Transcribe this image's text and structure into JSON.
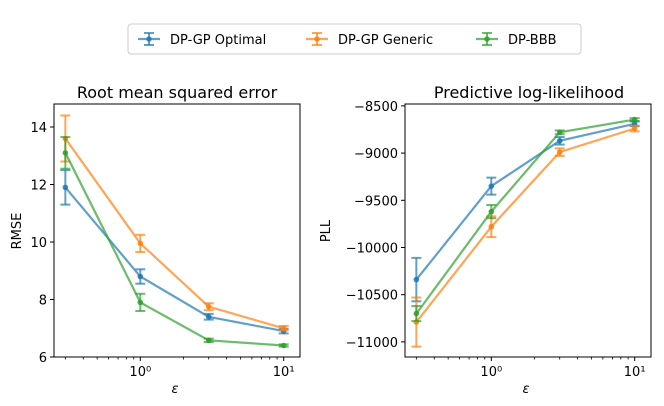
{
  "legend": {
    "entries": [
      {
        "name": "DP-GP Optimal",
        "color": "#1f77b4"
      },
      {
        "name": "DP-GP Generic",
        "color": "#ff7f0e"
      },
      {
        "name": "DP-BBB",
        "color": "#2ca02c"
      }
    ],
    "placement": "top-center"
  },
  "chart_data": [
    {
      "type": "line",
      "title": "Root mean squared error",
      "xlabel": "ε",
      "ylabel": "RMSE",
      "xscale": "log",
      "xlim": [
        0.25,
        13
      ],
      "ylim": [
        6,
        14.8
      ],
      "xticks": [
        1,
        10
      ],
      "xtick_labels": [
        "10⁰",
        "10¹"
      ],
      "yticks": [
        6,
        8,
        10,
        12,
        14
      ],
      "ytick_labels": [
        "6",
        "8",
        "10",
        "12",
        "14"
      ],
      "x": [
        0.3,
        1,
        3,
        10
      ],
      "series": [
        {
          "name": "DP-GP Optimal",
          "color": "#1f77b4",
          "values": [
            11.9,
            8.8,
            7.4,
            6.9
          ],
          "errors": [
            0.6,
            0.25,
            0.1,
            0.08
          ]
        },
        {
          "name": "DP-GP Generic",
          "color": "#ff7f0e",
          "values": [
            13.6,
            9.95,
            7.75,
            7.0
          ],
          "errors": [
            0.8,
            0.3,
            0.12,
            0.08
          ]
        },
        {
          "name": "DP-BBB",
          "color": "#2ca02c",
          "values": [
            13.1,
            7.9,
            6.58,
            6.4
          ],
          "errors": [
            0.55,
            0.3,
            0.06,
            0.04
          ]
        }
      ]
    },
    {
      "type": "line",
      "title": "Predictive log-likelihood",
      "xlabel": "ε",
      "ylabel": "PLL",
      "xscale": "log",
      "xlim": [
        0.25,
        13
      ],
      "ylim": [
        -11160,
        -8480
      ],
      "xticks": [
        1,
        10
      ],
      "xtick_labels": [
        "10⁰",
        "10¹"
      ],
      "yticks": [
        -11000,
        -10500,
        -10000,
        -9500,
        -9000,
        -8500
      ],
      "ytick_labels": [
        "−11000",
        "−10500",
        "−10000",
        "−9500",
        "−9000",
        "−8500"
      ],
      "x": [
        0.3,
        1,
        3,
        10
      ],
      "series": [
        {
          "name": "DP-GP Optimal",
          "color": "#1f77b4",
          "values": [
            -10340,
            -9350,
            -8870,
            -8690
          ],
          "errors": [
            230,
            90,
            40,
            25
          ]
        },
        {
          "name": "DP-GP Generic",
          "color": "#ff7f0e",
          "values": [
            -10790,
            -9780,
            -8990,
            -8740
          ],
          "errors": [
            260,
            110,
            40,
            30
          ]
        },
        {
          "name": "DP-BBB",
          "color": "#2ca02c",
          "values": [
            -10700,
            -9620,
            -8780,
            -8645
          ],
          "errors": [
            80,
            70,
            20,
            15
          ]
        }
      ]
    }
  ]
}
